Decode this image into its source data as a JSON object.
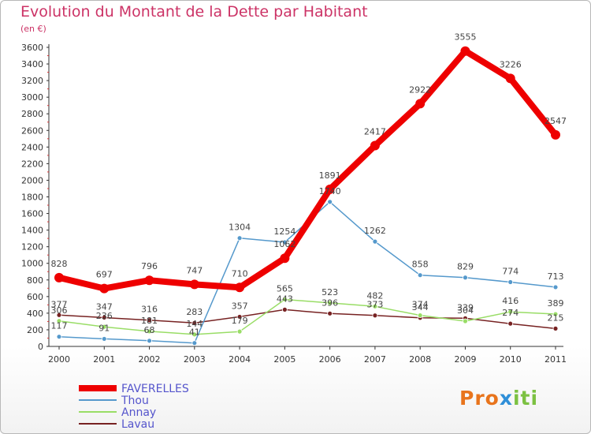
{
  "chart_data": {
    "type": "line",
    "title": "Evolution du Montant de la Dette par Habitant",
    "subtitle": "(en €)",
    "x": [
      "2000",
      "2001",
      "2002",
      "2003",
      "2004",
      "2005",
      "2006",
      "2007",
      "2008",
      "2009",
      "2010",
      "2011"
    ],
    "ylim": [
      0,
      3600
    ],
    "yticks": [
      0,
      200,
      400,
      600,
      800,
      1000,
      1200,
      1400,
      1600,
      1800,
      2000,
      2200,
      2400,
      2600,
      2800,
      3000,
      3200,
      3400,
      3600
    ],
    "grid": false,
    "legend": "bottom-left",
    "series": [
      {
        "name": "FAVERELLES",
        "color": "#ee0000",
        "values": [
          828,
          697,
          796,
          747,
          710,
          1062,
          1891,
          2417,
          2922,
          3555,
          3226,
          2547
        ]
      },
      {
        "name": "Thou",
        "color": "#5599cc",
        "values": [
          117,
          91,
          68,
          41,
          1304,
          1254,
          1740,
          1262,
          858,
          829,
          774,
          713
        ]
      },
      {
        "name": "Annay",
        "color": "#99dd66",
        "values": [
          306,
          236,
          181,
          144,
          179,
          565,
          523,
          482,
          374,
          304,
          416,
          389
        ]
      },
      {
        "name": "Lavau",
        "color": "#772222",
        "values": [
          377,
          347,
          316,
          283,
          357,
          443,
          396,
          373,
          344,
          339,
          274,
          215
        ]
      }
    ]
  },
  "logo": {
    "part1": "Pro",
    "part2": "x",
    "part3": "iti"
  }
}
